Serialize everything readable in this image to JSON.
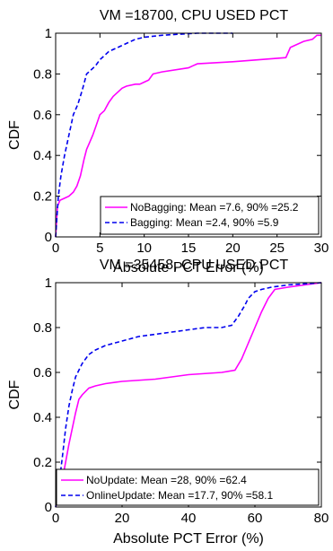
{
  "chart_data": [
    {
      "type": "line",
      "title": "VM =18700, CPU USED PCT",
      "xlabel": "Absolute PCT Error (%)",
      "ylabel": "CDF",
      "xlim": [
        0,
        30
      ],
      "ylim": [
        0,
        1
      ],
      "xticks": [
        "0",
        "5",
        "10",
        "15",
        "20",
        "25",
        "30"
      ],
      "yticks": [
        "0",
        "0.2",
        "0.4",
        "0.6",
        "0.8",
        "1"
      ],
      "legend_position": "bottom-right",
      "series": [
        {
          "name": "NoBagging: Mean =7.6, 90% =25.2",
          "color": "#ff00ff",
          "style": "solid",
          "x": [
            0,
            0.2,
            0.5,
            1.0,
            1.5,
            2.0,
            2.4,
            2.8,
            3.2,
            3.5,
            3.8,
            4.2,
            4.6,
            5.0,
            5.5,
            6.0,
            6.5,
            7.0,
            7.5,
            8.0,
            9.0,
            9.5,
            10.0,
            10.5,
            11.0,
            12.0,
            15.0,
            15.5,
            16.0,
            20.0,
            26.0,
            26.5,
            27.0,
            28.0,
            29.0,
            29.5,
            30.0
          ],
          "y": [
            0,
            0.15,
            0.18,
            0.19,
            0.2,
            0.22,
            0.25,
            0.3,
            0.38,
            0.43,
            0.46,
            0.5,
            0.55,
            0.6,
            0.62,
            0.66,
            0.69,
            0.71,
            0.73,
            0.74,
            0.75,
            0.75,
            0.76,
            0.77,
            0.8,
            0.81,
            0.83,
            0.84,
            0.85,
            0.86,
            0.88,
            0.93,
            0.94,
            0.96,
            0.97,
            0.99,
            0.99
          ]
        },
        {
          "name": "Bagging: Mean =2.4, 90% =5.9",
          "color": "#0000ee",
          "style": "dashed",
          "x": [
            0,
            0.3,
            0.6,
            1.0,
            1.5,
            2.0,
            2.5,
            3.0,
            3.5,
            4.0,
            4.5,
            5.0,
            5.5,
            6.0,
            7.0,
            8.0,
            9.0,
            10.0,
            12.0,
            14.0,
            16.0,
            20.0
          ],
          "y": [
            0,
            0.2,
            0.3,
            0.4,
            0.5,
            0.6,
            0.65,
            0.72,
            0.8,
            0.82,
            0.84,
            0.87,
            0.89,
            0.91,
            0.93,
            0.95,
            0.97,
            0.98,
            0.99,
            0.995,
            1.0,
            1.0
          ]
        }
      ]
    },
    {
      "type": "line",
      "title": "VM =35458, CPU USED PCT",
      "xlabel": "Absolute PCT Error (%)",
      "ylabel": "CDF",
      "xlim": [
        0,
        80
      ],
      "ylim": [
        0,
        1
      ],
      "xticks": [
        "0",
        "20",
        "40",
        "60",
        "80"
      ],
      "yticks": [
        "0",
        "0.2",
        "0.4",
        "0.6",
        "0.8",
        "1"
      ],
      "legend_position": "bottom-right",
      "series": [
        {
          "name": "NoUpdate: Mean =28, 90% =62.4",
          "color": "#ff00ff",
          "style": "solid",
          "x": [
            0,
            1,
            2,
            3,
            4,
            5,
            6,
            7,
            8,
            10,
            12,
            15,
            20,
            30,
            40,
            50,
            54,
            56,
            58,
            60,
            62,
            64,
            66,
            70,
            75,
            80
          ],
          "y": [
            0,
            0.05,
            0.12,
            0.2,
            0.28,
            0.35,
            0.42,
            0.48,
            0.5,
            0.53,
            0.54,
            0.55,
            0.56,
            0.57,
            0.59,
            0.6,
            0.61,
            0.66,
            0.73,
            0.8,
            0.87,
            0.93,
            0.97,
            0.98,
            0.99,
            1.0
          ]
        },
        {
          "name": "OnlineUpdate: Mean =17.7, 90% =58.1",
          "color": "#0000ee",
          "style": "dashed",
          "x": [
            0,
            1,
            2,
            3,
            4,
            5,
            6,
            8,
            10,
            12,
            15,
            20,
            25,
            30,
            35,
            40,
            45,
            50,
            53,
            55,
            57,
            58,
            60,
            62,
            65,
            70,
            75,
            80
          ],
          "y": [
            0,
            0.1,
            0.22,
            0.35,
            0.45,
            0.52,
            0.58,
            0.64,
            0.68,
            0.7,
            0.72,
            0.74,
            0.76,
            0.77,
            0.78,
            0.79,
            0.8,
            0.8,
            0.81,
            0.85,
            0.9,
            0.93,
            0.96,
            0.97,
            0.98,
            0.99,
            0.995,
            1.0
          ]
        }
      ]
    }
  ]
}
